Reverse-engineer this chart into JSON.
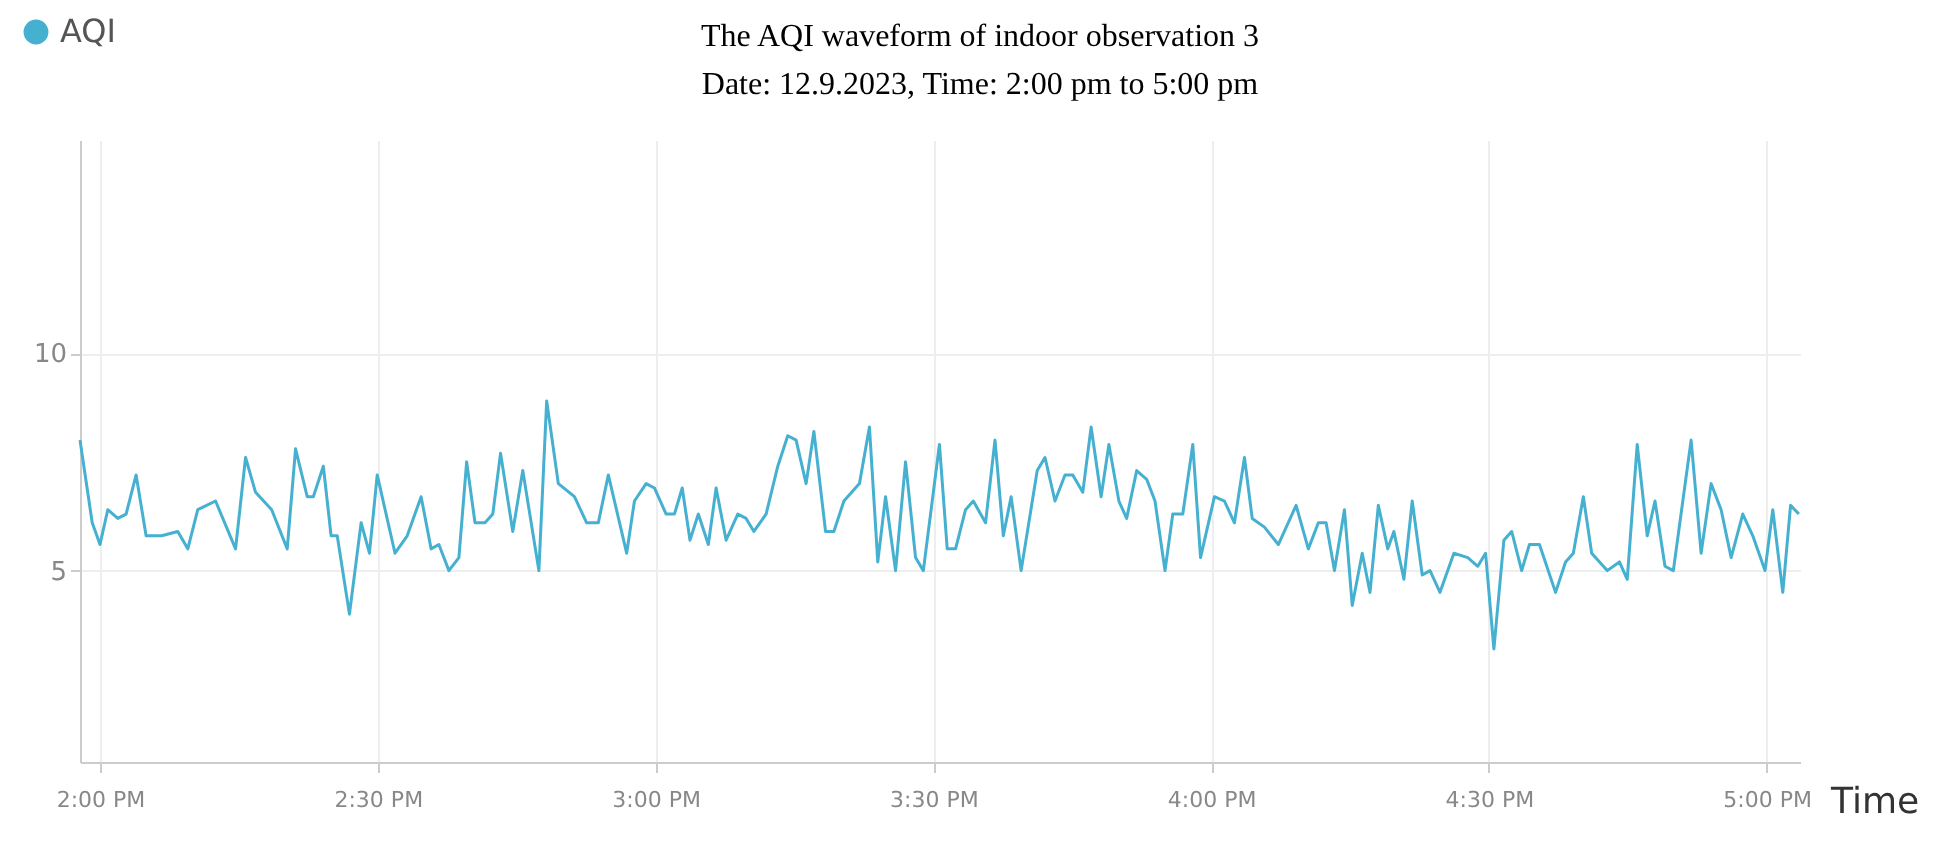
{
  "chart_data": {
    "type": "line",
    "title": "The AQI waveform of indoor observation 3",
    "subtitle": "Date: 12.9.2023, Time: 2:00 pm to 5:00 pm",
    "xlabel": "Time",
    "x": [
      13.964,
      13.986,
      14.0,
      14.014,
      14.032,
      14.047,
      14.065,
      14.083,
      14.111,
      14.14,
      14.158,
      14.176,
      14.208,
      14.244,
      14.262,
      14.28,
      14.309,
      14.337,
      14.352,
      14.373,
      14.384,
      14.402,
      14.416,
      14.427,
      14.449,
      14.47,
      14.485,
      14.499,
      14.531,
      14.553,
      14.578,
      14.596,
      14.61,
      14.628,
      14.646,
      14.66,
      14.675,
      14.693,
      14.707,
      14.721,
      14.743,
      14.761,
      14.79,
      14.804,
      14.825,
      14.854,
      14.876,
      14.897,
      14.915,
      14.948,
      14.962,
      14.983,
      14.998,
      15.019,
      15.034,
      15.048,
      15.062,
      15.077,
      15.095,
      15.109,
      15.127,
      15.148,
      15.163,
      15.177,
      15.199,
      15.22,
      15.238,
      15.253,
      15.271,
      15.285,
      15.306,
      15.321,
      15.339,
      15.367,
      15.385,
      15.4,
      15.414,
      15.432,
      15.45,
      15.468,
      15.482,
      15.511,
      15.525,
      15.54,
      15.558,
      15.572,
      15.594,
      15.611,
      15.626,
      15.64,
      15.658,
      15.687,
      15.701,
      15.719,
      15.737,
      15.751,
      15.769,
      15.784,
      15.802,
      15.816,
      15.834,
      15.848,
      15.866,
      15.884,
      15.899,
      15.917,
      15.931,
      15.949,
      15.967,
      15.981,
      16.006,
      16.024,
      16.042,
      16.06,
      16.074,
      16.096,
      16.121,
      16.153,
      16.175,
      16.193,
      16.207,
      16.222,
      16.24,
      16.254,
      16.272,
      16.286,
      16.301,
      16.318,
      16.329,
      16.347,
      16.362,
      16.38,
      16.394,
      16.412,
      16.437,
      16.462,
      16.48,
      16.494,
      16.509,
      16.527,
      16.541,
      16.559,
      16.573,
      16.591,
      16.62,
      16.638,
      16.652,
      16.67,
      16.685,
      16.713,
      16.735,
      16.749,
      16.767,
      16.785,
      16.799,
      16.817,
      16.832,
      16.864,
      16.882,
      16.9,
      16.918,
      16.936,
      16.957,
      16.975,
      16.997,
      17.011,
      17.029,
      17.043,
      17.058
    ],
    "series": [
      {
        "name": "AQI",
        "color": "#45b0cf",
        "values": [
          8.0,
          6.1,
          5.6,
          6.4,
          6.2,
          6.3,
          7.2,
          5.8,
          5.8,
          5.9,
          5.5,
          6.4,
          6.6,
          5.5,
          7.6,
          6.8,
          6.4,
          5.5,
          7.8,
          6.7,
          6.7,
          7.4,
          5.8,
          5.8,
          4.0,
          6.1,
          5.4,
          7.2,
          5.4,
          5.8,
          6.7,
          5.5,
          5.6,
          5.0,
          5.3,
          7.5,
          6.1,
          6.1,
          6.3,
          7.7,
          5.9,
          7.3,
          5.0,
          8.9,
          7.0,
          6.7,
          6.1,
          6.1,
          7.2,
          5.4,
          6.6,
          7.0,
          6.9,
          6.3,
          6.3,
          6.9,
          5.7,
          6.3,
          5.6,
          6.9,
          5.7,
          6.3,
          6.2,
          5.9,
          6.3,
          7.4,
          8.1,
          8.0,
          7.0,
          8.2,
          5.9,
          5.9,
          6.6,
          7.0,
          8.3,
          5.2,
          6.7,
          5.0,
          7.5,
          5.3,
          5.0,
          7.9,
          5.5,
          5.5,
          6.4,
          6.6,
          6.1,
          8.0,
          5.8,
          6.7,
          5.0,
          7.3,
          7.6,
          6.6,
          7.2,
          7.2,
          6.8,
          8.3,
          6.7,
          7.9,
          6.6,
          6.2,
          7.3,
          7.1,
          6.6,
          5.0,
          6.3,
          6.3,
          7.9,
          5.3,
          6.7,
          6.6,
          6.1,
          7.6,
          6.2,
          6.0,
          5.6,
          6.5,
          5.5,
          6.1,
          6.1,
          5.0,
          6.4,
          4.2,
          5.4,
          4.5,
          6.5,
          5.5,
          5.9,
          4.8,
          6.6,
          4.9,
          5.0,
          4.5,
          5.4,
          5.3,
          5.1,
          5.4,
          3.2,
          5.7,
          5.9,
          5.0,
          5.6,
          5.6,
          4.5,
          5.2,
          5.4,
          6.7,
          5.4,
          5.0,
          5.2,
          4.8,
          7.9,
          5.8,
          6.6,
          5.1,
          5.0,
          8.0,
          5.4,
          7.0,
          6.4,
          5.3,
          6.3,
          5.8,
          5.0,
          6.4,
          4.5,
          6.5,
          6.3
        ]
      }
    ],
    "xlim": [
      13.964,
      17.06
    ],
    "ylim": [
      0.6,
      14.9
    ],
    "xticks": [
      {
        "value": 14,
        "label": "2:00 PM"
      },
      {
        "value": 14.5,
        "label": "2:30 PM"
      },
      {
        "value": 15,
        "label": "3:00 PM"
      },
      {
        "value": 15.5,
        "label": "3:30 PM"
      },
      {
        "value": 16,
        "label": "4:00 PM"
      },
      {
        "value": 16.5,
        "label": "4:30 PM"
      },
      {
        "value": 17,
        "label": "5:00 PM"
      }
    ],
    "yticks": [
      5,
      10
    ],
    "grid": true,
    "legend": "top left",
    "line_style": "solid"
  }
}
